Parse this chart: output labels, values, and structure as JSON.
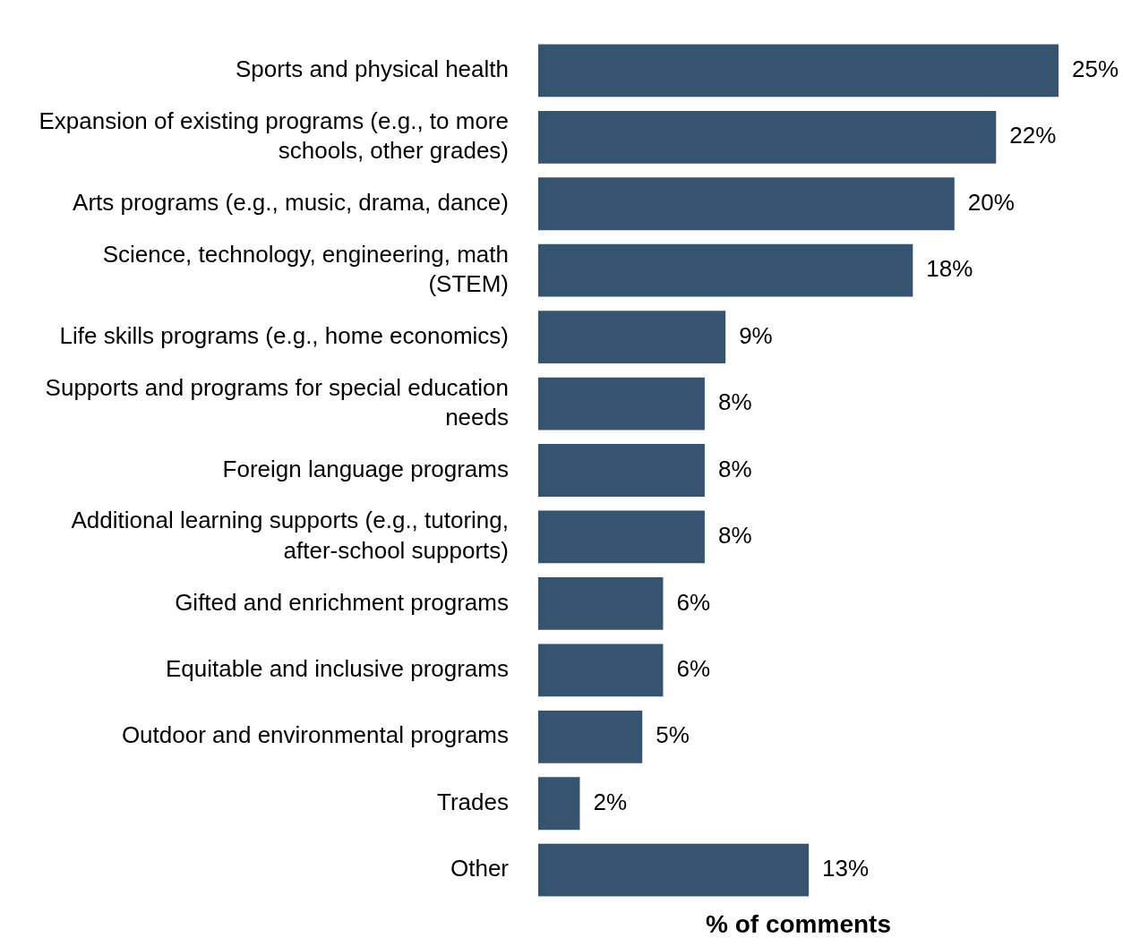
{
  "chart_data": {
    "type": "bar",
    "orientation": "horizontal",
    "xlabel": "% of comments",
    "categories": [
      "Sports and physical health",
      "Expansion of existing programs (e.g., to more schools, other grades)",
      "Arts programs (e.g., music, drama, dance)",
      "Science, technology, engineering, math (STEM)",
      "Life skills programs (e.g., home economics)",
      "Supports and programs for special education needs",
      "Foreign language programs",
      "Additional learning supports (e.g., tutoring, after-school supports)",
      "Gifted and enrichment programs",
      "Equitable and inclusive programs",
      "Outdoor and environmental programs",
      "Trades",
      "Other"
    ],
    "values": [
      25,
      22,
      20,
      18,
      9,
      8,
      8,
      8,
      6,
      6,
      5,
      2,
      13
    ],
    "value_labels": [
      "25%",
      "22%",
      "20%",
      "18%",
      "9%",
      "8%",
      "8%",
      "8%",
      "6%",
      "6%",
      "5%",
      "2%",
      "13%"
    ],
    "color": "#36536f",
    "grid": false,
    "legend": false,
    "tick_labels": "y"
  }
}
